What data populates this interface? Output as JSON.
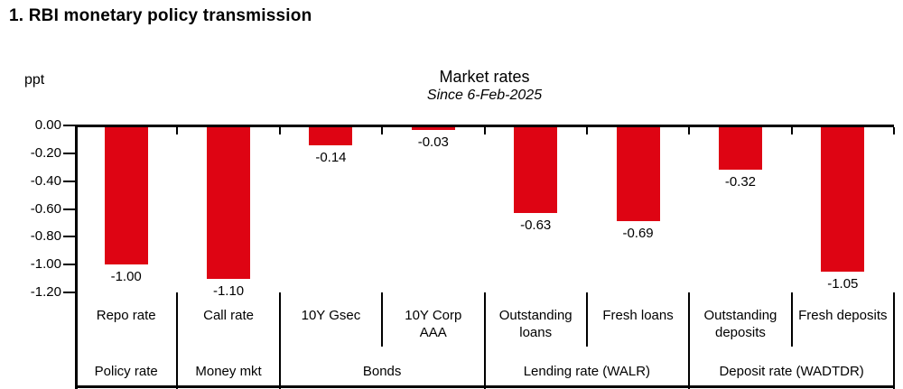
{
  "heading": "1. RBI monetary policy transmission",
  "chart_data": {
    "type": "bar",
    "title": "Market rates",
    "subtitle": "Since 6-Feb-2025",
    "unit_label": "ppt",
    "ylim": [
      -1.2,
      0
    ],
    "y_tick_labels": [
      "0.00",
      "-0.20",
      "-0.40",
      "-0.60",
      "-0.80",
      "-1.00",
      "-1.20"
    ],
    "grid": false,
    "legend": false,
    "bar_color": "#de0413",
    "axis_color": "#000000",
    "categories": [
      "Repo rate",
      "Call rate",
      "10Y Gsec",
      "10Y Corp AAA",
      "Outstanding loans",
      "Fresh loans",
      "Outstanding deposits",
      "Fresh deposits"
    ],
    "values": [
      -1.0,
      -1.1,
      -0.14,
      -0.03,
      -0.63,
      -0.69,
      -0.32,
      -1.05
    ],
    "value_labels": [
      "-1.00",
      "-1.10",
      "-0.14",
      "-0.03",
      "-0.63",
      "-0.69",
      "-0.32",
      "-1.05"
    ],
    "groups": [
      {
        "label": "Policy rate",
        "categories": [
          {
            "label": "Repo rate",
            "value": -1.0,
            "value_label": "-1.00"
          }
        ]
      },
      {
        "label": "Money mkt",
        "categories": [
          {
            "label": "Call rate",
            "value": -1.1,
            "value_label": "-1.10"
          }
        ]
      },
      {
        "label": "Bonds",
        "categories": [
          {
            "label": "10Y Gsec",
            "value": -0.14,
            "value_label": "-0.14"
          },
          {
            "label": "10Y Corp AAA",
            "lines": [
              "10Y Corp",
              "AAA"
            ],
            "value": -0.03,
            "value_label": "-0.03"
          }
        ]
      },
      {
        "label": "Lending rate (WALR)",
        "categories": [
          {
            "label": "Outstanding loans",
            "lines": [
              "Outstanding",
              "loans"
            ],
            "value": -0.63,
            "value_label": "-0.63"
          },
          {
            "label": "Fresh loans",
            "value": -0.69,
            "value_label": "-0.69"
          }
        ]
      },
      {
        "label": "Deposit rate (WADTDR)",
        "categories": [
          {
            "label": "Outstanding deposits",
            "lines": [
              "Outstanding",
              "deposits"
            ],
            "value": -0.32,
            "value_label": "-0.32"
          },
          {
            "label": "Fresh deposits",
            "value": -1.05,
            "value_label": "-1.05"
          }
        ]
      }
    ]
  }
}
